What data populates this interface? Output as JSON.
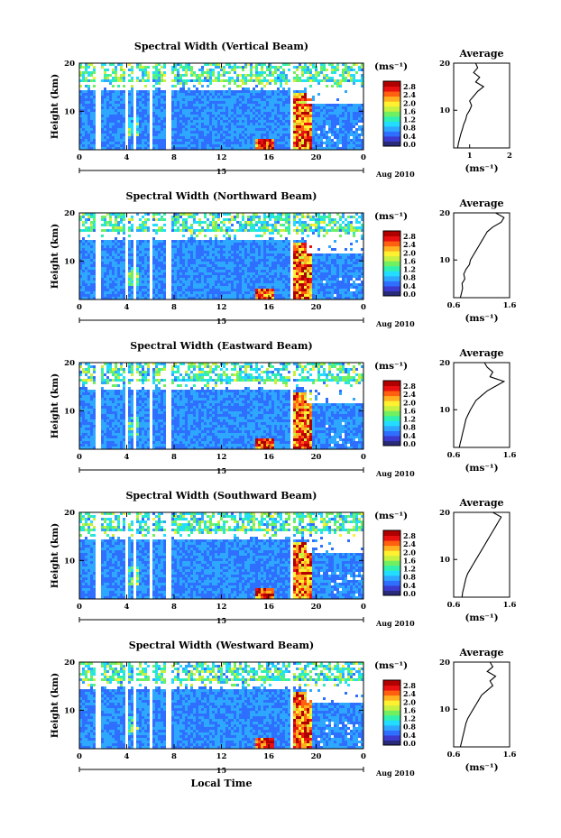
{
  "figure": {
    "xaxis_label": "Local Time",
    "date_label": "Aug 2010",
    "date_tick": "15"
  },
  "colorbar": {
    "unit": "(ms⁻¹)",
    "ticks": [
      "2.8",
      "2.4",
      "2.0",
      "1.6",
      "1.2",
      "0.8",
      "0.4",
      "0.0"
    ],
    "colors": [
      "#2a2a7a",
      "#3b3bd0",
      "#2f6fff",
      "#2ea8ff",
      "#22ddff",
      "#30f0b0",
      "#70f060",
      "#c8f040",
      "#fff030",
      "#ffb020",
      "#ff6010",
      "#e81010",
      "#b00000"
    ]
  },
  "chart_data": [
    {
      "type": "heatmap",
      "title": "Spectral Width (Vertical Beam)",
      "xlabel": "",
      "ylabel": "Height (km)",
      "x_ticks": [
        "0",
        "4",
        "8",
        "12",
        "16",
        "20",
        "0"
      ],
      "y_ticks": [
        "10",
        "20"
      ],
      "xlim": [
        0,
        24
      ],
      "ylim": [
        2,
        20
      ],
      "colorbar_range": [
        0.0,
        3.0
      ],
      "gaps_hours": [
        [
          1.3,
          1.6
        ],
        [
          3.8,
          4.0
        ],
        [
          4.5,
          4.7
        ],
        [
          5.8,
          6.0
        ],
        [
          7.3,
          7.6
        ],
        [
          17.6,
          18.0
        ]
      ],
      "average_profile": {
        "title": "Average",
        "xlabel": "(ms⁻¹)",
        "x_ticks": [
          "1",
          "2"
        ],
        "y_ticks": [
          "10",
          "20"
        ],
        "xlim": [
          0.6,
          2.0
        ],
        "ylim": [
          2,
          20
        ],
        "height_km": [
          2,
          3,
          4,
          5,
          6,
          7,
          8,
          9,
          10,
          11,
          12,
          13,
          14,
          15,
          16,
          17,
          18,
          19,
          20
        ],
        "width_ms": [
          0.7,
          0.72,
          0.75,
          0.78,
          0.82,
          0.85,
          0.9,
          0.93,
          1.0,
          1.05,
          1.0,
          1.1,
          1.2,
          1.35,
          1.15,
          1.25,
          1.1,
          1.2,
          1.15
        ]
      }
    },
    {
      "type": "heatmap",
      "title": "Spectral Width (Northward Beam)",
      "xlabel": "",
      "ylabel": "Height (km)",
      "x_ticks": [
        "0",
        "4",
        "8",
        "12",
        "16",
        "20",
        "0"
      ],
      "y_ticks": [
        "10",
        "20"
      ],
      "xlim": [
        0,
        24
      ],
      "ylim": [
        2,
        20
      ],
      "colorbar_range": [
        0.0,
        3.0
      ],
      "gaps_hours": [
        [
          1.3,
          1.6
        ],
        [
          3.8,
          4.0
        ],
        [
          4.5,
          4.7
        ],
        [
          5.8,
          6.0
        ],
        [
          7.3,
          7.6
        ],
        [
          17.6,
          18.0
        ]
      ],
      "average_profile": {
        "title": "Average",
        "xlabel": "(ms⁻¹)",
        "x_ticks": [
          "0.6",
          "1.6"
        ],
        "y_ticks": [
          "10",
          "20"
        ],
        "xlim": [
          0.6,
          1.6
        ],
        "ylim": [
          2,
          20
        ],
        "height_km": [
          2,
          3,
          4,
          5,
          6,
          7,
          8,
          9,
          10,
          11,
          12,
          13,
          14,
          15,
          16,
          17,
          18,
          19,
          20
        ],
        "width_ms": [
          0.72,
          0.74,
          0.76,
          0.75,
          0.8,
          0.78,
          0.82,
          0.88,
          0.9,
          0.95,
          1.0,
          1.05,
          1.1,
          1.15,
          1.2,
          1.3,
          1.45,
          1.5,
          1.35
        ]
      }
    },
    {
      "type": "heatmap",
      "title": "Spectral Width (Eastward Beam)",
      "xlabel": "",
      "ylabel": "Height (km)",
      "x_ticks": [
        "0",
        "4",
        "8",
        "12",
        "16",
        "20",
        "0"
      ],
      "y_ticks": [
        "10",
        "20"
      ],
      "xlim": [
        0,
        24
      ],
      "ylim": [
        2,
        20
      ],
      "colorbar_range": [
        0.0,
        3.0
      ],
      "gaps_hours": [
        [
          1.3,
          1.6
        ],
        [
          3.8,
          4.0
        ],
        [
          4.5,
          4.7
        ],
        [
          5.8,
          6.0
        ],
        [
          7.3,
          7.6
        ],
        [
          17.6,
          18.0
        ]
      ],
      "average_profile": {
        "title": "Average",
        "xlabel": "(ms⁻¹)",
        "x_ticks": [
          "0.6",
          "1.6"
        ],
        "y_ticks": [
          "10",
          "20"
        ],
        "xlim": [
          0.6,
          1.6
        ],
        "ylim": [
          2,
          20
        ],
        "height_km": [
          2,
          3,
          4,
          5,
          6,
          7,
          8,
          9,
          10,
          11,
          12,
          13,
          14,
          15,
          16,
          17,
          18,
          19,
          20
        ],
        "width_ms": [
          0.7,
          0.72,
          0.74,
          0.76,
          0.78,
          0.8,
          0.82,
          0.86,
          0.9,
          0.95,
          1.0,
          1.1,
          1.2,
          1.35,
          1.5,
          1.25,
          1.3,
          1.2,
          1.15
        ]
      }
    },
    {
      "type": "heatmap",
      "title": "Spectral Width (Southward Beam)",
      "xlabel": "",
      "ylabel": "Height (km)",
      "x_ticks": [
        "0",
        "4",
        "8",
        "12",
        "16",
        "20",
        "0"
      ],
      "y_ticks": [
        "10",
        "20"
      ],
      "xlim": [
        0,
        24
      ],
      "ylim": [
        2,
        20
      ],
      "colorbar_range": [
        0.0,
        3.0
      ],
      "gaps_hours": [
        [
          1.3,
          1.6
        ],
        [
          3.8,
          4.0
        ],
        [
          4.5,
          4.7
        ],
        [
          5.8,
          6.0
        ],
        [
          7.3,
          7.6
        ],
        [
          17.6,
          18.0
        ]
      ],
      "average_profile": {
        "title": "Average",
        "xlabel": "(ms⁻¹)",
        "x_ticks": [
          "0.6",
          "1.6"
        ],
        "y_ticks": [
          "10",
          "20"
        ],
        "xlim": [
          0.6,
          1.6
        ],
        "ylim": [
          2,
          20
        ],
        "height_km": [
          2,
          3,
          4,
          5,
          6,
          7,
          8,
          9,
          10,
          11,
          12,
          13,
          14,
          15,
          16,
          17,
          18,
          19,
          20
        ],
        "width_ms": [
          0.75,
          0.76,
          0.78,
          0.8,
          0.82,
          0.85,
          0.9,
          0.95,
          1.0,
          1.05,
          1.1,
          1.15,
          1.2,
          1.25,
          1.3,
          1.35,
          1.4,
          1.45,
          1.3
        ]
      }
    },
    {
      "type": "heatmap",
      "title": "Spectral Width (Westward Beam)",
      "xlabel": "Local Time",
      "ylabel": "Height (km)",
      "x_ticks": [
        "0",
        "4",
        "8",
        "12",
        "16",
        "20",
        "0"
      ],
      "y_ticks": [
        "10",
        "20"
      ],
      "xlim": [
        0,
        24
      ],
      "ylim": [
        2,
        20
      ],
      "colorbar_range": [
        0.0,
        3.0
      ],
      "gaps_hours": [
        [
          1.3,
          1.6
        ],
        [
          3.8,
          4.0
        ],
        [
          4.5,
          4.7
        ],
        [
          5.8,
          6.0
        ],
        [
          7.3,
          7.6
        ],
        [
          17.6,
          18.0
        ]
      ],
      "average_profile": {
        "title": "Average",
        "xlabel": "(ms⁻¹)",
        "x_ticks": [
          "0.6",
          "1.6"
        ],
        "y_ticks": [
          "10",
          "20"
        ],
        "xlim": [
          0.6,
          1.6
        ],
        "ylim": [
          2,
          20
        ],
        "height_km": [
          2,
          3,
          4,
          5,
          6,
          7,
          8,
          9,
          10,
          11,
          12,
          13,
          14,
          15,
          16,
          17,
          18,
          19,
          20
        ],
        "width_ms": [
          0.72,
          0.74,
          0.76,
          0.78,
          0.8,
          0.82,
          0.85,
          0.9,
          0.95,
          1.0,
          1.05,
          1.1,
          1.2,
          1.3,
          1.25,
          1.35,
          1.2,
          1.3,
          1.25
        ]
      }
    }
  ]
}
